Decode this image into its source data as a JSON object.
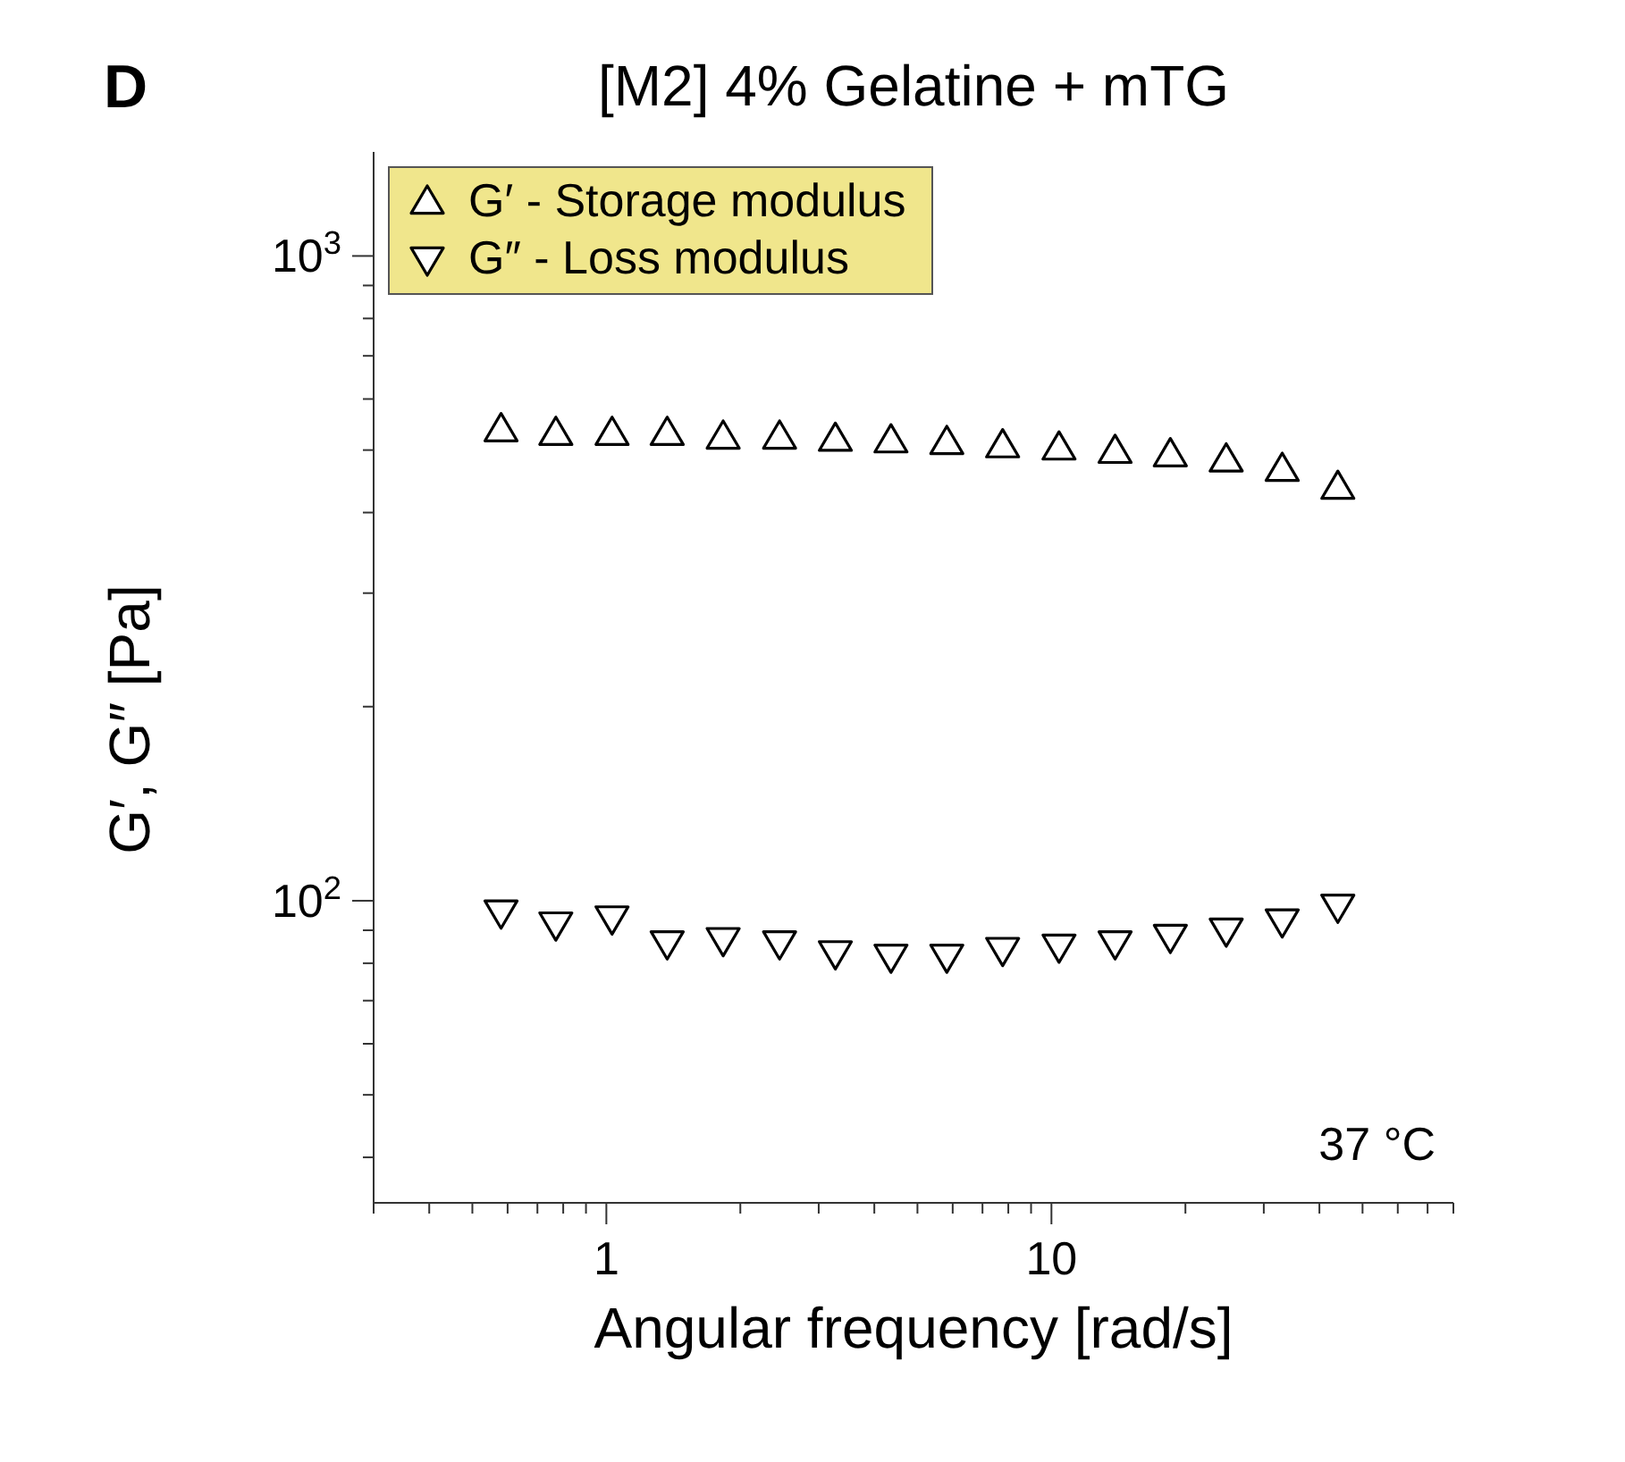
{
  "chart_data": {
    "type": "scatter",
    "title": "[M2] 4% Gelatine + mTG",
    "xlabel": "Angular frequency [rad/s]",
    "ylabel": "G′, G″ [Pa]",
    "annotations": [
      "D",
      "37 °C"
    ],
    "log": "xy",
    "grid": false,
    "legend": "top left",
    "xlim": [
      0.3,
      80
    ],
    "xticks": [
      {
        "value": 0.3,
        "label": null
      },
      {
        "value": 0.4,
        "label": null
      },
      {
        "value": 0.5,
        "label": null
      },
      {
        "value": 0.6,
        "label": null
      },
      {
        "value": 0.7,
        "label": null
      },
      {
        "value": 0.8,
        "label": null
      },
      {
        "value": 0.9,
        "label": null
      },
      1,
      {
        "value": 2,
        "label": null
      },
      {
        "value": 3,
        "label": null
      },
      {
        "value": 4,
        "label": null
      },
      {
        "value": 5,
        "label": null
      },
      {
        "value": 6,
        "label": null
      },
      {
        "value": 7,
        "label": null
      },
      {
        "value": 8,
        "label": null
      },
      {
        "value": 9,
        "label": null
      },
      10,
      {
        "value": 20,
        "label": null
      },
      {
        "value": 30,
        "label": null
      },
      {
        "value": 40,
        "label": null
      },
      {
        "value": 50,
        "label": null
      },
      {
        "value": 60,
        "label": null
      },
      {
        "value": 70,
        "label": null
      },
      {
        "value": 80,
        "label": null
      }
    ],
    "ylim": [
      34,
      1450
    ],
    "yticks": [
      {
        "value": 40,
        "label": null
      },
      {
        "value": 50,
        "label": null
      },
      {
        "value": 60,
        "label": null
      },
      {
        "value": 70,
        "label": null
      },
      {
        "value": 80,
        "label": null
      },
      {
        "value": 90,
        "label": null
      },
      {
        "value": 100,
        "label": "10$^{2}$"
      },
      {
        "value": 200,
        "label": null
      },
      {
        "value": 300,
        "label": null
      },
      {
        "value": 400,
        "label": null
      },
      {
        "value": 500,
        "label": null
      },
      {
        "value": 600,
        "label": null
      },
      {
        "value": 700,
        "label": null
      },
      {
        "value": 800,
        "label": null
      },
      {
        "value": 900,
        "label": null
      },
      {
        "value": 1000,
        "label": "10$^{3}$"
      }
    ],
    "x": [
      0.58,
      0.77,
      1.03,
      1.37,
      1.83,
      2.45,
      3.27,
      4.36,
      5.82,
      7.77,
      10.4,
      13.9,
      18.5,
      24.7,
      33,
      44
    ],
    "series": [
      {
        "name": "G′ - Storage modulus",
        "color": "#000000",
        "marker": "triangle",
        "values": [
          538,
          531,
          531,
          531,
          524,
          524,
          520,
          517,
          514,
          508,
          504,
          498,
          492,
          483,
          467,
          438
        ]
      },
      {
        "name": "G″ - Loss modulus",
        "color": "#000000",
        "marker": "triangle-down",
        "values": [
          96,
          92,
          94,
          86,
          87,
          86,
          83,
          82,
          82,
          84,
          85,
          86,
          88,
          90,
          93,
          98
        ]
      }
    ]
  }
}
